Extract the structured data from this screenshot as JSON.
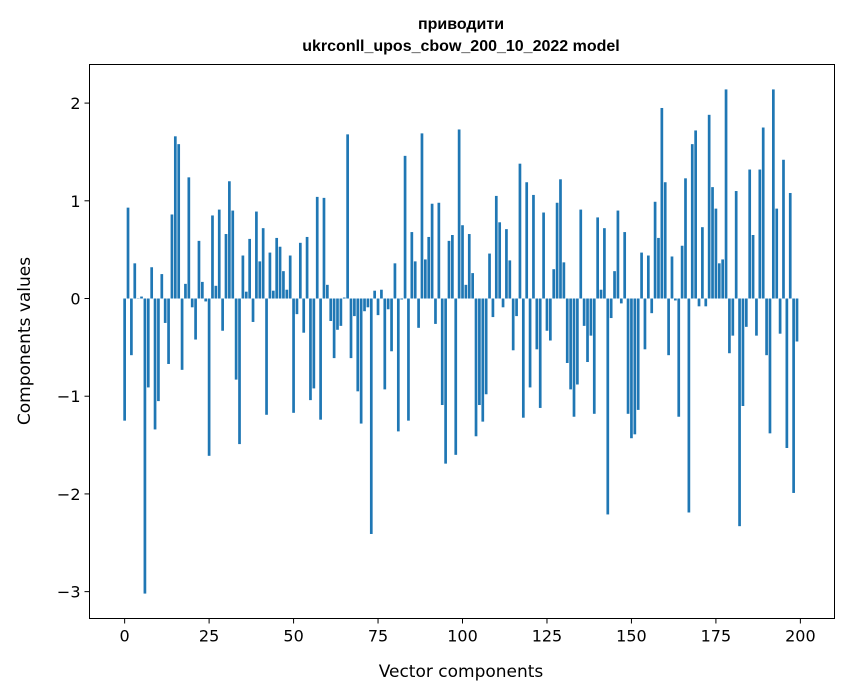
{
  "chart_data": {
    "type": "bar",
    "title": [
      "приводити",
      "ukrconll_upos_cbow_200_10_2022 model"
    ],
    "xlabel": "Vector components",
    "ylabel": "Components values",
    "xlim": [
      -10.4,
      210.1
    ],
    "ylim": [
      -3.275,
      2.395
    ],
    "xticks": [
      0,
      25,
      50,
      75,
      100,
      125,
      150,
      175,
      200
    ],
    "xtick_labels": [
      "0",
      "25",
      "50",
      "75",
      "100",
      "125",
      "150",
      "175",
      "200"
    ],
    "yticks": [
      -3,
      -2,
      -1,
      0,
      1,
      2
    ],
    "ytick_labels": [
      "−3",
      "−2",
      "−1",
      "0",
      "1",
      "2"
    ],
    "grid": false,
    "bar_color": "#1f77b4",
    "values": [
      -1.25,
      0.93,
      -0.58,
      0.36,
      0.0,
      0.02,
      -3.02,
      -0.91,
      0.32,
      -1.34,
      -1.05,
      0.25,
      -0.25,
      -0.67,
      0.86,
      1.66,
      1.58,
      -0.73,
      0.15,
      1.24,
      -0.09,
      -0.42,
      0.59,
      0.17,
      -0.03,
      -1.61,
      0.85,
      0.13,
      0.91,
      -0.33,
      0.66,
      1.2,
      0.9,
      -0.83,
      -1.49,
      0.44,
      0.07,
      0.61,
      -0.24,
      0.89,
      0.38,
      0.72,
      -1.19,
      0.47,
      0.08,
      0.62,
      0.53,
      0.28,
      0.09,
      0.44,
      -1.17,
      -0.16,
      0.57,
      -0.35,
      0.63,
      -1.04,
      -0.92,
      1.04,
      -1.24,
      1.03,
      0.14,
      -0.23,
      -0.61,
      -0.32,
      -0.28,
      0.01,
      1.68,
      -0.61,
      -0.18,
      -0.95,
      -1.28,
      -0.13,
      -0.09,
      -2.41,
      0.08,
      -0.17,
      0.09,
      -0.93,
      -0.11,
      -0.54,
      0.36,
      -1.36,
      -0.01,
      1.46,
      -1.25,
      0.68,
      0.38,
      -0.3,
      1.69,
      0.4,
      0.63,
      0.97,
      -0.26,
      0.98,
      -1.09,
      -1.69,
      0.59,
      0.65,
      -1.6,
      1.73,
      0.75,
      0.14,
      0.66,
      0.26,
      -1.41,
      -1.09,
      -1.26,
      -0.98,
      0.46,
      -0.19,
      1.05,
      0.78,
      -0.09,
      0.71,
      0.39,
      -0.53,
      -0.18,
      1.38,
      -1.22,
      1.19,
      -0.91,
      1.06,
      -0.52,
      -1.12,
      0.88,
      -0.33,
      -0.43,
      0.3,
      0.98,
      1.22,
      0.37,
      -0.66,
      -0.93,
      -1.21,
      -0.88,
      0.91,
      -0.28,
      -0.65,
      -0.38,
      -1.18,
      0.83,
      0.09,
      0.72,
      -2.21,
      -0.2,
      0.28,
      0.9,
      -0.05,
      0.68,
      -1.18,
      -1.43,
      -1.39,
      -1.14,
      0.47,
      -0.52,
      0.44,
      -0.15,
      0.99,
      0.62,
      1.95,
      1.19,
      -0.58,
      0.43,
      -0.02,
      -1.21,
      0.54,
      1.23,
      -2.19,
      1.58,
      1.72,
      -0.08,
      0.73,
      -0.08,
      1.88,
      1.14,
      0.92,
      0.36,
      0.4,
      2.14,
      -0.56,
      -0.38,
      1.1,
      -2.33,
      -1.1,
      -0.29,
      1.32,
      0.65,
      -0.38,
      1.32,
      1.75,
      -0.58,
      -1.38,
      2.14,
      0.92,
      -0.36,
      1.42,
      -1.53,
      1.08,
      -1.99,
      -0.44
    ]
  }
}
